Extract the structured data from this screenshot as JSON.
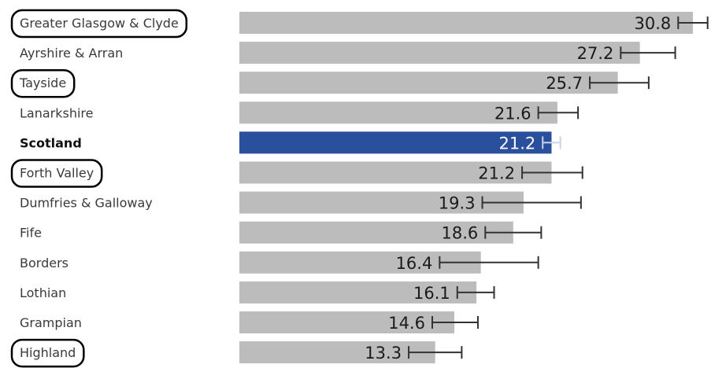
{
  "chart_data": {
    "type": "bar",
    "orientation": "horizontal",
    "categories": [
      "Greater Glasgow & Clyde",
      "Ayrshire & Arran",
      "Tayside",
      "Lanarkshire",
      "Scotland",
      "Forth Valley",
      "Dumfries & Galloway",
      "Fife",
      "Borders",
      "Lothian",
      "Grampian",
      "Highland"
    ],
    "values": [
      30.8,
      27.2,
      25.7,
      21.6,
      21.2,
      21.2,
      19.3,
      18.6,
      16.4,
      16.1,
      14.6,
      13.3
    ],
    "error_low": [
      29.8,
      25.9,
      23.8,
      20.3,
      20.6,
      19.2,
      16.5,
      16.7,
      13.6,
      14.8,
      13.1,
      11.5
    ],
    "error_high": [
      31.8,
      29.6,
      27.8,
      23.0,
      21.8,
      23.3,
      23.2,
      20.5,
      20.3,
      17.3,
      16.2,
      15.1
    ],
    "highlighted_category": "Scotland",
    "circled_categories": [
      "Greater Glasgow & Clyde",
      "Tayside",
      "Forth Valley",
      "Highland"
    ],
    "xlim": [
      0,
      32
    ],
    "grid": false,
    "legend": "none",
    "colors": {
      "bar": "#bcbcbc",
      "highlight_bar": "#2a4f9c",
      "error_bar": "#333333",
      "circle": "#000000"
    }
  }
}
